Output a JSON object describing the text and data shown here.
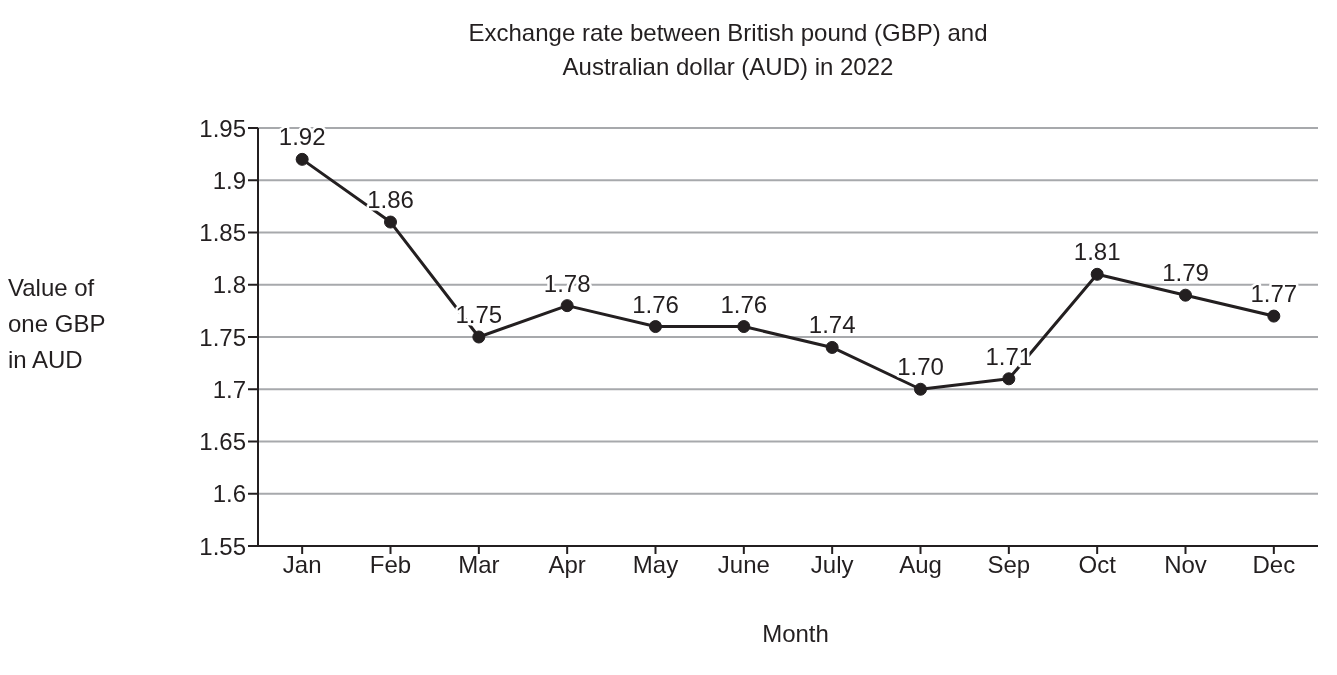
{
  "chart_data": {
    "type": "line",
    "title": "Exchange rate between British pound (GBP) and Australian dollar (AUD) in 2022",
    "xlabel": "Month",
    "ylabel": "Value of one GBP in AUD",
    "categories": [
      "Jan",
      "Feb",
      "Mar",
      "Apr",
      "May",
      "June",
      "July",
      "Aug",
      "Sep",
      "Oct",
      "Nov",
      "Dec"
    ],
    "series": [
      {
        "color": "#231f20",
        "values": [
          1.92,
          1.86,
          1.75,
          1.78,
          1.76,
          1.76,
          1.74,
          1.7,
          1.71,
          1.81,
          1.79,
          1.77
        ],
        "value_labels": [
          "1.92",
          "1.86",
          "1.75",
          "1.78",
          "1.76",
          "1.76",
          "1.74",
          "1.70",
          "1.71",
          "1.81",
          "1.79",
          "1.77"
        ]
      }
    ],
    "ylim": [
      1.55,
      1.95
    ],
    "yticks": [
      1.55,
      1.6,
      1.65,
      1.7,
      1.75,
      1.8,
      1.85,
      1.9,
      1.95
    ],
    "grid": "y",
    "legend": false,
    "marker": "circle",
    "line_style": "solid"
  }
}
